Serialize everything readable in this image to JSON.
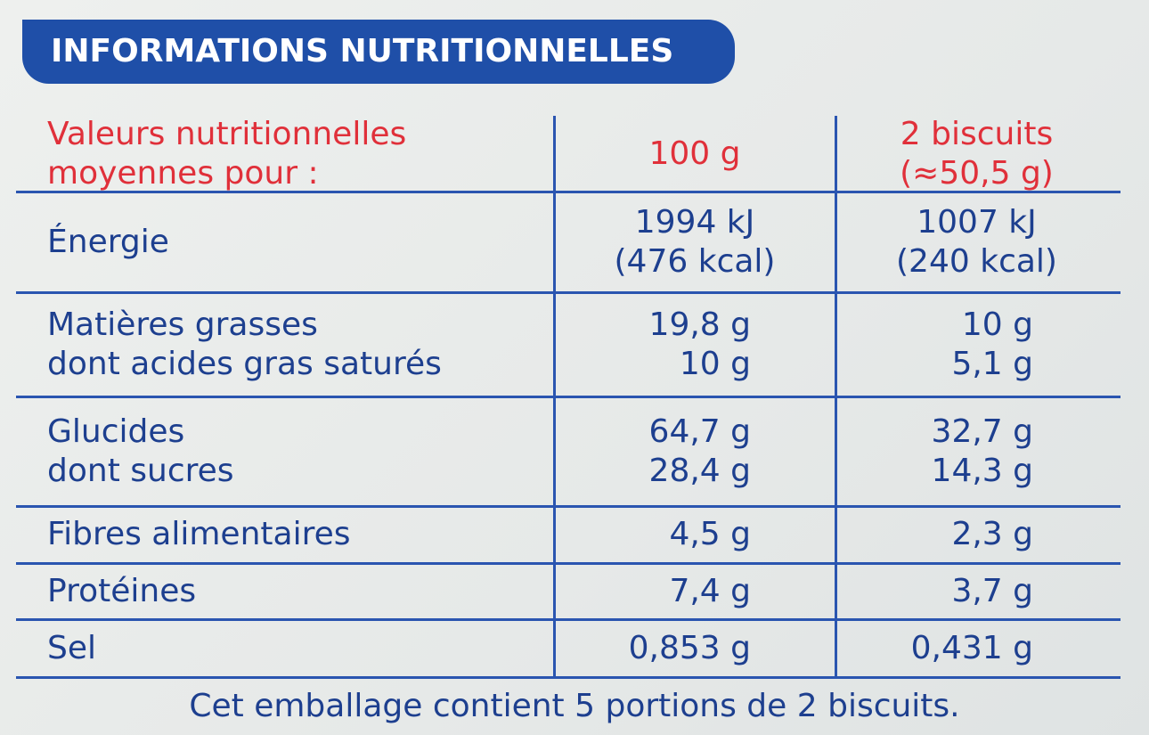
{
  "title": "INFORMATIONS NUTRITIONNELLES",
  "table": {
    "header": [
      [
        "Valeurs nutritionnelles",
        "moyennes pour :"
      ],
      [
        "100 g"
      ],
      [
        "2 biscuits",
        "(≈50,5 g)"
      ]
    ],
    "rows": [
      [
        [
          "Énergie"
        ],
        [
          "1994 kJ",
          "(476 kcal)"
        ],
        [
          "1007 kJ",
          "(240 kcal)"
        ]
      ],
      [
        [
          "Matières grasses",
          "dont acides gras saturés"
        ],
        [
          "19,8 g",
          "10 g"
        ],
        [
          "10 g",
          "5,1 g"
        ]
      ],
      [
        [
          "Glucides",
          "dont sucres"
        ],
        [
          "64,7 g",
          "28,4 g"
        ],
        [
          "32,7 g",
          "14,3 g"
        ]
      ],
      [
        [
          "Fibres alimentaires"
        ],
        [
          "4,5 g"
        ],
        [
          "2,3 g"
        ]
      ],
      [
        [
          "Protéines"
        ],
        [
          "7,4 g"
        ],
        [
          "3,7 g"
        ]
      ],
      [
        [
          "Sel"
        ],
        [
          "0,853 g"
        ],
        [
          "0,431 g"
        ]
      ]
    ]
  },
  "footer": "Cet emballage contient 5 portions de 2 biscuits."
}
